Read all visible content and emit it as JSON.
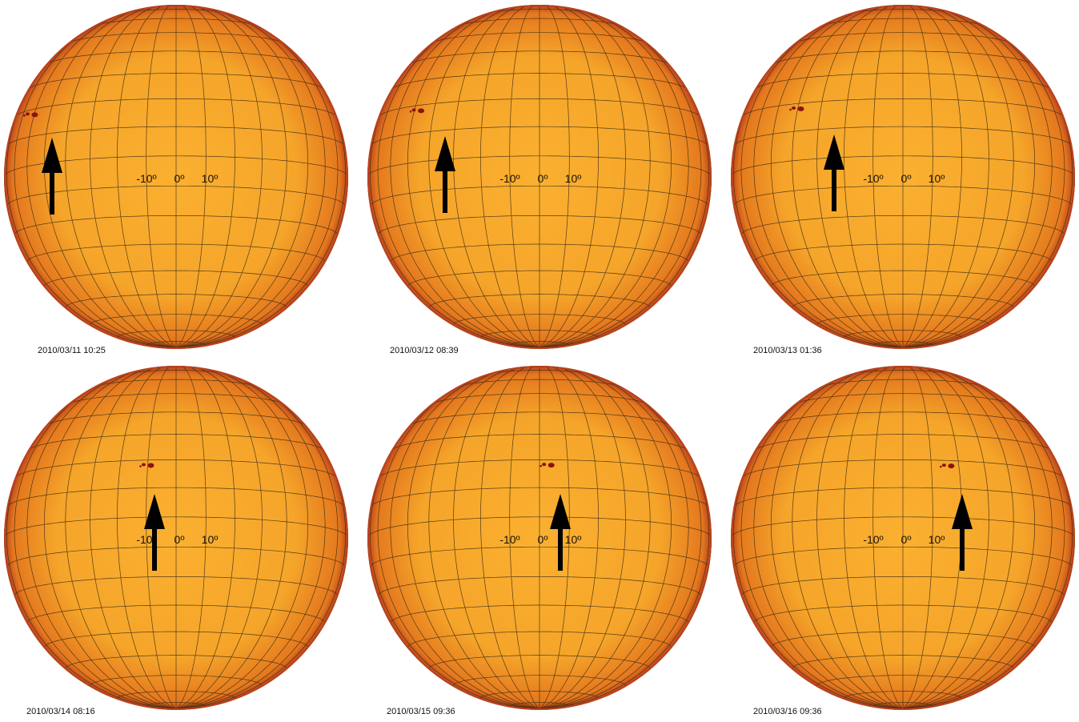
{
  "figure": {
    "longitude_labels": [
      "-10º",
      "0º",
      "10º"
    ],
    "colors": {
      "disk_center": "#FBB030",
      "disk_mid": "#F5A52A",
      "disk_edge": "#E4781E",
      "limb": "#B8421C",
      "grid": "#3A2A12",
      "sunspot": "#8A1410",
      "arrow": "#000000"
    },
    "panels": [
      {
        "timestamp": "2010/03/11 10:25",
        "sunspot_longitude_deg": -62,
        "sunspot_latitude_deg": 18
      },
      {
        "timestamp": "2010/03/12 08:39",
        "sunspot_longitude_deg": -48,
        "sunspot_latitude_deg": 18
      },
      {
        "timestamp": "2010/03/13 01:36",
        "sunspot_longitude_deg": -40,
        "sunspot_latitude_deg": 18
      },
      {
        "timestamp": "2010/03/14 08:16",
        "sunspot_longitude_deg": -10,
        "sunspot_latitude_deg": 18
      },
      {
        "timestamp": "2010/03/15 09:36",
        "sunspot_longitude_deg": 3,
        "sunspot_latitude_deg": 18
      },
      {
        "timestamp": "2010/03/16 09:36",
        "sunspot_longitude_deg": 16,
        "sunspot_latitude_deg": 18
      }
    ]
  }
}
